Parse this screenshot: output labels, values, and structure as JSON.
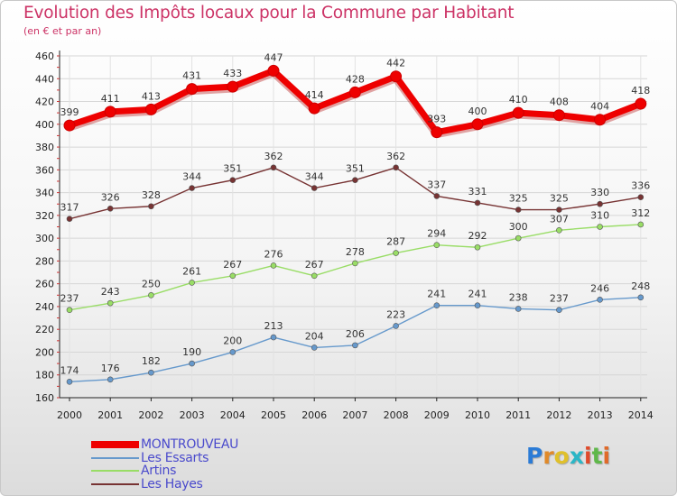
{
  "title": "Evolution des Impôts locaux pour la Commune par Habitant",
  "subtitle": "(en € et par an)",
  "logo": {
    "text": "Proxiti",
    "letters": [
      {
        "ch": "P",
        "color": "#2b7bd6"
      },
      {
        "ch": "r",
        "color": "#e08a2a"
      },
      {
        "ch": "o",
        "color": "#e0c02a"
      },
      {
        "ch": "x",
        "color": "#2bb6c6"
      },
      {
        "ch": "i",
        "color": "#e04a2a"
      },
      {
        "ch": "t",
        "color": "#5fb84a"
      },
      {
        "ch": "i",
        "color": "#e06a2a"
      }
    ]
  },
  "chart_data": {
    "type": "line",
    "title": "Evolution des Impôts locaux pour la Commune par Habitant",
    "ylabel": "(en € et par an)",
    "xlabel": "",
    "ylim": [
      160,
      460
    ],
    "yticks": [
      160,
      180,
      200,
      220,
      240,
      260,
      280,
      300,
      320,
      340,
      360,
      380,
      400,
      420,
      440,
      460
    ],
    "categories": [
      "2000",
      "2001",
      "2002",
      "2003",
      "2004",
      "2005",
      "2006",
      "2007",
      "2008",
      "2009",
      "2010",
      "2011",
      "2012",
      "2013",
      "2014"
    ],
    "series": [
      {
        "name": "MONTROUVEAU",
        "color": "#ee0000",
        "values": [
          399,
          411,
          413,
          431,
          433,
          447,
          414,
          428,
          442,
          393,
          400,
          410,
          408,
          404,
          418
        ]
      },
      {
        "name": "Les Essarts",
        "color": "#6699cc",
        "values": [
          174,
          176,
          182,
          190,
          200,
          213,
          204,
          206,
          223,
          241,
          241,
          238,
          237,
          246,
          248
        ]
      },
      {
        "name": "Artins",
        "color": "#99dd66",
        "values": [
          237,
          243,
          250,
          261,
          267,
          276,
          267,
          278,
          287,
          294,
          292,
          300,
          307,
          310,
          312
        ]
      },
      {
        "name": "Les Hayes",
        "color": "#773333",
        "values": [
          317,
          326,
          328,
          344,
          351,
          362,
          344,
          351,
          362,
          337,
          331,
          325,
          325,
          330,
          336
        ]
      }
    ]
  }
}
